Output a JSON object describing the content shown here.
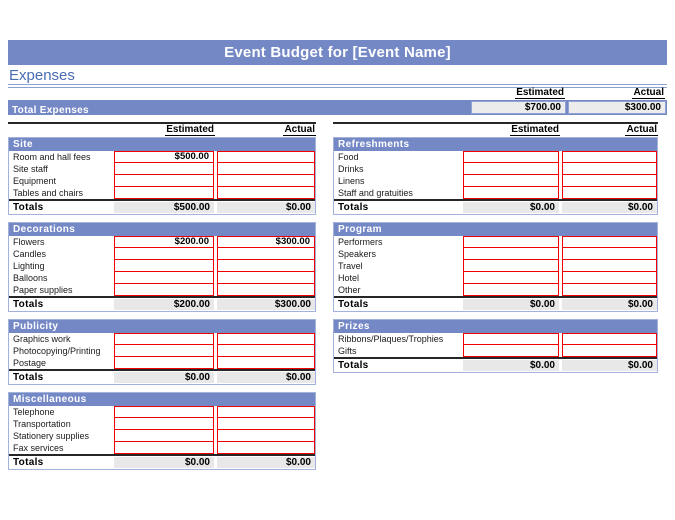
{
  "window": {
    "title": "Event Budget for [Event Name]"
  },
  "heading": "Expenses",
  "columns": {
    "estimated": "Estimated",
    "actual": "Actual"
  },
  "total_expenses": {
    "label": "Total Expenses",
    "estimated": "$700.00",
    "actual": "$300.00"
  },
  "colors": {
    "bar_blue": "#7488c6",
    "light_blue_border": "#a3b2db",
    "heading_blue": "#4a6cb3",
    "input_cell_red": "#f20000",
    "totals_cell_gray": "#e8e8e8",
    "rule_dark": "#262626"
  },
  "left_sections": [
    {
      "name": "Site",
      "rows": [
        {
          "label": "Room and hall fees",
          "estimated": "$500.00",
          "actual": ""
        },
        {
          "label": "Site staff",
          "estimated": "",
          "actual": ""
        },
        {
          "label": "Equipment",
          "estimated": "",
          "actual": ""
        },
        {
          "label": "Tables and chairs",
          "estimated": "",
          "actual": ""
        }
      ],
      "totals": {
        "label": "Totals",
        "estimated": "$500.00",
        "actual": "$0.00"
      }
    },
    {
      "name": "Decorations",
      "rows": [
        {
          "label": "Flowers",
          "estimated": "$200.00",
          "actual": "$300.00"
        },
        {
          "label": "Candles",
          "estimated": "",
          "actual": ""
        },
        {
          "label": "Lighting",
          "estimated": "",
          "actual": ""
        },
        {
          "label": "Balloons",
          "estimated": "",
          "actual": ""
        },
        {
          "label": "Paper supplies",
          "estimated": "",
          "actual": ""
        }
      ],
      "totals": {
        "label": "Totals",
        "estimated": "$200.00",
        "actual": "$300.00"
      }
    },
    {
      "name": "Publicity",
      "rows": [
        {
          "label": "Graphics work",
          "estimated": "",
          "actual": ""
        },
        {
          "label": "Photocopying/Printing",
          "estimated": "",
          "actual": ""
        },
        {
          "label": "Postage",
          "estimated": "",
          "actual": ""
        }
      ],
      "totals": {
        "label": "Totals",
        "estimated": "$0.00",
        "actual": "$0.00"
      }
    },
    {
      "name": "Miscellaneous",
      "rows": [
        {
          "label": "Telephone",
          "estimated": "",
          "actual": ""
        },
        {
          "label": "Transportation",
          "estimated": "",
          "actual": ""
        },
        {
          "label": "Stationery supplies",
          "estimated": "",
          "actual": ""
        },
        {
          "label": "Fax services",
          "estimated": "",
          "actual": ""
        }
      ],
      "totals": {
        "label": "Totals",
        "estimated": "$0.00",
        "actual": "$0.00"
      }
    }
  ],
  "right_sections": [
    {
      "name": "Refreshments",
      "rows": [
        {
          "label": "Food",
          "estimated": "",
          "actual": ""
        },
        {
          "label": "Drinks",
          "estimated": "",
          "actual": ""
        },
        {
          "label": "Linens",
          "estimated": "",
          "actual": ""
        },
        {
          "label": "Staff and gratuities",
          "estimated": "",
          "actual": ""
        }
      ],
      "totals": {
        "label": "Totals",
        "estimated": "$0.00",
        "actual": "$0.00"
      }
    },
    {
      "name": "Program",
      "rows": [
        {
          "label": "Performers",
          "estimated": "",
          "actual": ""
        },
        {
          "label": "Speakers",
          "estimated": "",
          "actual": ""
        },
        {
          "label": "Travel",
          "estimated": "",
          "actual": ""
        },
        {
          "label": "Hotel",
          "estimated": "",
          "actual": ""
        },
        {
          "label": "Other",
          "estimated": "",
          "actual": ""
        }
      ],
      "totals": {
        "label": "Totals",
        "estimated": "$0.00",
        "actual": "$0.00"
      }
    },
    {
      "name": "Prizes",
      "rows": [
        {
          "label": "Ribbons/Plaques/Trophies",
          "estimated": "",
          "actual": ""
        },
        {
          "label": "Gifts",
          "estimated": "",
          "actual": ""
        }
      ],
      "totals": {
        "label": "Totals",
        "estimated": "$0.00",
        "actual": "$0.00"
      }
    }
  ]
}
